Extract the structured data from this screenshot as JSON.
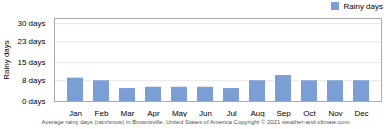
{
  "chart_data": {
    "type": "bar",
    "categories": [
      "Jan",
      "Feb",
      "Mar",
      "Apr",
      "May",
      "Jun",
      "Jul",
      "Aug",
      "Sep",
      "Oct",
      "Nov",
      "Dec"
    ],
    "series": [
      {
        "name": "Rainy days",
        "color": "#7b9fd4",
        "values": [
          9,
          8,
          5,
          5.5,
          5.5,
          5.5,
          5,
          8,
          10,
          8,
          8,
          8
        ]
      }
    ],
    "ylabel": "Rainy days",
    "xlabel": "Average rainy days (rain/snow) in Brownsville, United States of America   Copyright © 2021  weather-and-climate.com",
    "ylim": [
      0,
      32
    ],
    "yticks": [
      {
        "value": 0,
        "label": "0 days"
      },
      {
        "value": 8,
        "label": "8 days"
      },
      {
        "value": 15,
        "label": "15 days"
      },
      {
        "value": 23,
        "label": "23 days"
      },
      {
        "value": 30,
        "label": "30 days"
      }
    ],
    "grid": true,
    "legend": "upper right"
  }
}
